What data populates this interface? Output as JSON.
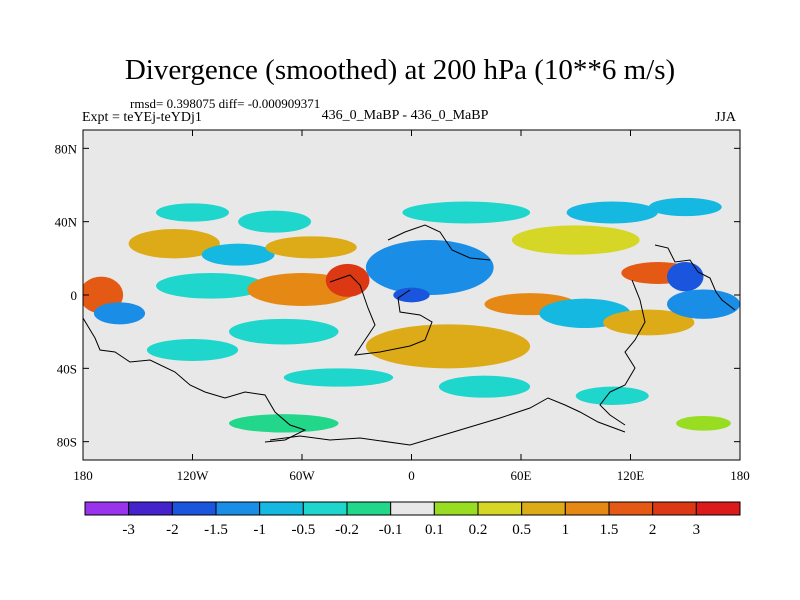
{
  "chart_data": {
    "type": "heatmap",
    "title": "Divergence (smoothed) at 200 hPa (10**6 m/s)",
    "stats_text": "rmsd= 0.398075 diff= -0.000909371",
    "experiment_text": "Expt = teYEj-teYDj1",
    "cases_text": "436_0_MaBP - 436_0_MaBP",
    "season": "JJA",
    "x_axis": {
      "range": [
        -180,
        180
      ],
      "ticks": [
        {
          "value": -180,
          "label": "180"
        },
        {
          "value": -120,
          "label": "120W"
        },
        {
          "value": -60,
          "label": "60W"
        },
        {
          "value": 0,
          "label": "0"
        },
        {
          "value": 60,
          "label": "60E"
        },
        {
          "value": 120,
          "label": "120E"
        },
        {
          "value": 180,
          "label": "180"
        }
      ]
    },
    "y_axis": {
      "range": [
        -90,
        90
      ],
      "ticks": [
        {
          "value": 80,
          "label": "80N"
        },
        {
          "value": 40,
          "label": "40N"
        },
        {
          "value": 0,
          "label": "0"
        },
        {
          "value": -40,
          "label": "40S"
        },
        {
          "value": -80,
          "label": "80S"
        }
      ]
    },
    "colorbar": {
      "levels": [
        "-3",
        "-2",
        "-1.5",
        "-1",
        "-0.5",
        "-0.2",
        "-0.1",
        "0.1",
        "0.2",
        "0.5",
        "1",
        "1.5",
        "2",
        "3"
      ],
      "colors": [
        "#9933ee",
        "#4422cc",
        "#1a55dd",
        "#1a8ee6",
        "#14b8e0",
        "#1ed6cc",
        "#22d68a",
        "#e8e8e8",
        "#99dd22",
        "#d6d626",
        "#ddaa18",
        "#e68814",
        "#e45a14",
        "#dd3814",
        "#dd1a1a"
      ]
    },
    "field_blobs": [
      {
        "lon": -170,
        "lat": 0,
        "rlon": 12,
        "rlat": 10,
        "level": 12
      },
      {
        "lon": -160,
        "lat": -10,
        "rlon": 14,
        "rlat": 6,
        "level": 3
      },
      {
        "lon": -130,
        "lat": 28,
        "rlon": 25,
        "rlat": 8,
        "level": 10
      },
      {
        "lon": -110,
        "lat": 5,
        "rlon": 30,
        "rlat": 7,
        "level": 5
      },
      {
        "lon": -95,
        "lat": 22,
        "rlon": 20,
        "rlat": 6,
        "level": 4
      },
      {
        "lon": -75,
        "lat": 40,
        "rlon": 20,
        "rlat": 6,
        "level": 5
      },
      {
        "lon": -60,
        "lat": 3,
        "rlon": 30,
        "rlat": 9,
        "level": 11
      },
      {
        "lon": -35,
        "lat": 8,
        "rlon": 12,
        "rlat": 9,
        "level": 13
      },
      {
        "lon": -15,
        "lat": 15,
        "rlon": 6,
        "rlat": 5,
        "level": 14
      },
      {
        "lon": -55,
        "lat": 26,
        "rlon": 25,
        "rlat": 6,
        "level": 10
      },
      {
        "lon": -70,
        "lat": -20,
        "rlon": 30,
        "rlat": 7,
        "level": 5
      },
      {
        "lon": 10,
        "lat": 15,
        "rlon": 35,
        "rlat": 15,
        "level": 3
      },
      {
        "lon": 0,
        "lat": 0,
        "rlon": 10,
        "rlat": 4,
        "level": 2
      },
      {
        "lon": 20,
        "lat": -28,
        "rlon": 45,
        "rlat": 12,
        "level": 10
      },
      {
        "lon": 65,
        "lat": -5,
        "rlon": 25,
        "rlat": 6,
        "level": 11
      },
      {
        "lon": 90,
        "lat": 30,
        "rlon": 35,
        "rlat": 8,
        "level": 9
      },
      {
        "lon": 110,
        "lat": 45,
        "rlon": 25,
        "rlat": 6,
        "level": 4
      },
      {
        "lon": 135,
        "lat": 12,
        "rlon": 20,
        "rlat": 6,
        "level": 12
      },
      {
        "lon": 150,
        "lat": 10,
        "rlon": 10,
        "rlat": 8,
        "level": 2
      },
      {
        "lon": 95,
        "lat": -10,
        "rlon": 25,
        "rlat": 8,
        "level": 4
      },
      {
        "lon": 130,
        "lat": -15,
        "rlon": 25,
        "rlat": 7,
        "level": 10
      },
      {
        "lon": 160,
        "lat": -5,
        "rlon": 20,
        "rlat": 8,
        "level": 3
      },
      {
        "lon": -120,
        "lat": -30,
        "rlon": 25,
        "rlat": 6,
        "level": 5
      },
      {
        "lon": -40,
        "lat": -45,
        "rlon": 30,
        "rlat": 5,
        "level": 5
      },
      {
        "lon": 40,
        "lat": -50,
        "rlon": 25,
        "rlat": 6,
        "level": 5
      },
      {
        "lon": 110,
        "lat": -55,
        "rlon": 20,
        "rlat": 5,
        "level": 5
      },
      {
        "lon": -70,
        "lat": -70,
        "rlon": 30,
        "rlat": 5,
        "level": 6
      },
      {
        "lon": 160,
        "lat": -70,
        "rlon": 15,
        "rlat": 4,
        "level": 8
      },
      {
        "lon": 30,
        "lat": 45,
        "rlon": 35,
        "rlat": 6,
        "level": 5
      },
      {
        "lon": -120,
        "lat": 45,
        "rlon": 20,
        "rlat": 5,
        "level": 5
      },
      {
        "lon": 150,
        "lat": 48,
        "rlon": 20,
        "rlat": 5,
        "level": 4
      }
    ]
  }
}
